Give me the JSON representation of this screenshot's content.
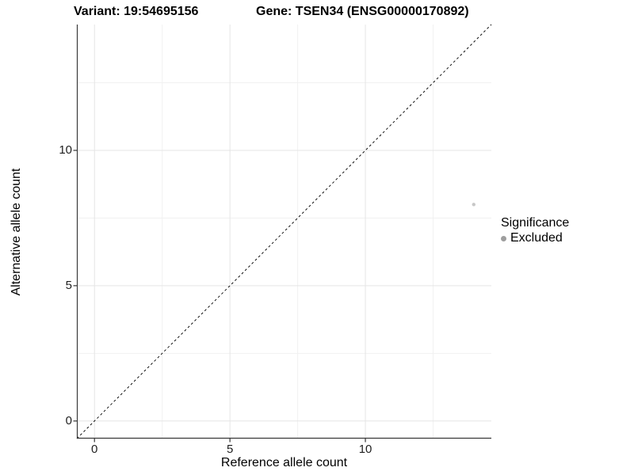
{
  "chart_data": {
    "type": "scatter",
    "title_left": "Variant: 19:54695156",
    "title_right": "Gene: TSEN34 (ENSG00000170892)",
    "xlabel": "Reference allele count",
    "ylabel": "Alternative allele count",
    "xlim": [
      -0.65,
      14.65
    ],
    "ylim": [
      -0.65,
      14.65
    ],
    "x_major_ticks": [
      0,
      5,
      10
    ],
    "y_major_ticks": [
      0,
      5,
      10
    ],
    "x_minor_gridlines": [
      2.5,
      7.5,
      12.5
    ],
    "y_minor_gridlines": [
      2.5,
      7.5,
      12.5
    ],
    "grid": true,
    "identity_line": {
      "slope": 1,
      "intercept": 0,
      "style": "dashed",
      "color": "#111111"
    },
    "series": [
      {
        "name": "Excluded",
        "color": "#c8c8c8",
        "point_radius": 2.2,
        "points": [
          {
            "x": 14,
            "y": 8
          }
        ]
      }
    ],
    "legend": {
      "title": "Significance",
      "position": "right",
      "entries": [
        {
          "label": "Excluded",
          "color": "#9e9e9e"
        }
      ]
    },
    "colors": {
      "axis_line": "#3a3a3a",
      "tick_mark": "#333333",
      "grid_major": "#e5e5e5",
      "grid_minor": "#f1f1f1",
      "tick_text": "#1f1f1f"
    }
  }
}
